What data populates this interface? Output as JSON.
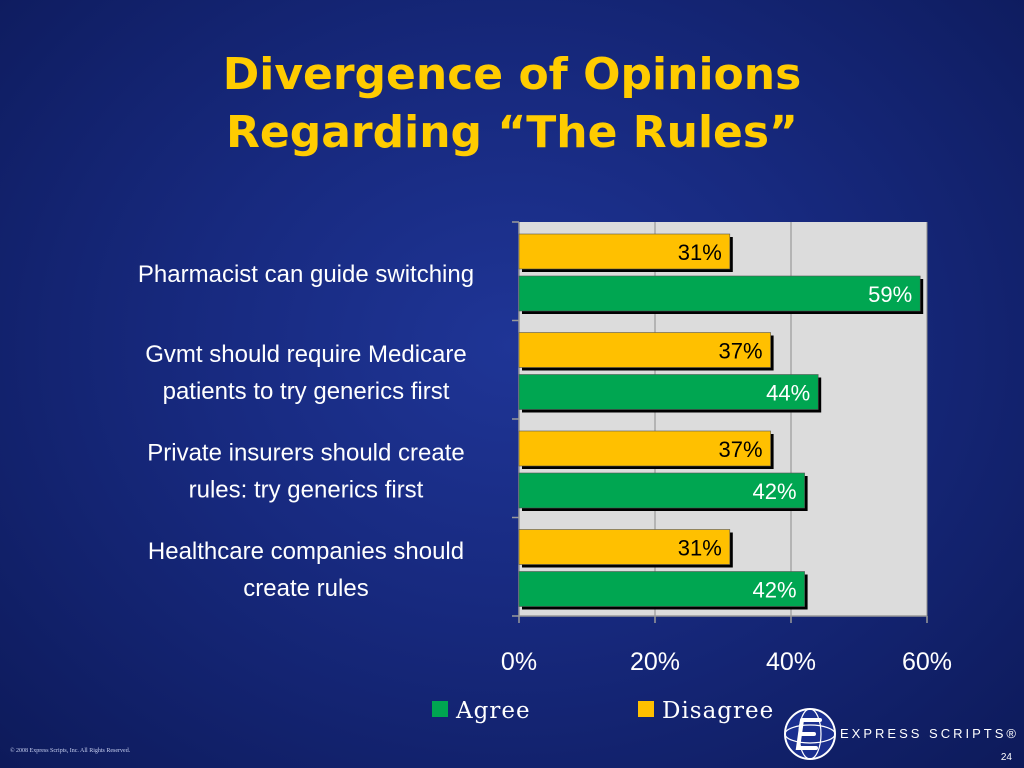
{
  "slide": {
    "title_line1": "Divergence of Opinions",
    "title_line2": "Regarding “The Rules”",
    "copyright": "© 2008 Express Scripts, Inc. All Rights Reserved.",
    "page_number": "24",
    "brand": "EXPRESS SCRIPTS®"
  },
  "colors": {
    "agree": "#00a651",
    "disagree": "#ffc000",
    "plot_bg": "#dcdcdc",
    "title": "#ffcc00"
  },
  "chart_data": {
    "type": "bar",
    "orientation": "horizontal",
    "categories": [
      [
        "Pharmacist can guide switching"
      ],
      [
        "Gvmt should  require Medicare",
        "patients to try generics first"
      ],
      [
        "Private insurers should create",
        "rules: try generics first"
      ],
      [
        "Healthcare companies should",
        "create rules"
      ]
    ],
    "series": [
      {
        "name": "Disagree",
        "values": [
          31,
          37,
          37,
          31
        ],
        "labels": [
          "31%",
          "37%",
          "37%",
          "31%"
        ]
      },
      {
        "name": "Agree",
        "values": [
          59,
          44,
          42,
          42
        ],
        "labels": [
          "59%",
          "44%",
          "42%",
          "42%"
        ]
      }
    ],
    "xlim": [
      0,
      60
    ],
    "xticks": [
      0,
      20,
      40,
      60
    ],
    "xtick_labels": [
      "0%",
      "20%",
      "40%",
      "60%"
    ],
    "grid": true,
    "legend": {
      "position": "bottom",
      "entries": [
        "Agree",
        "Disagree"
      ]
    }
  }
}
